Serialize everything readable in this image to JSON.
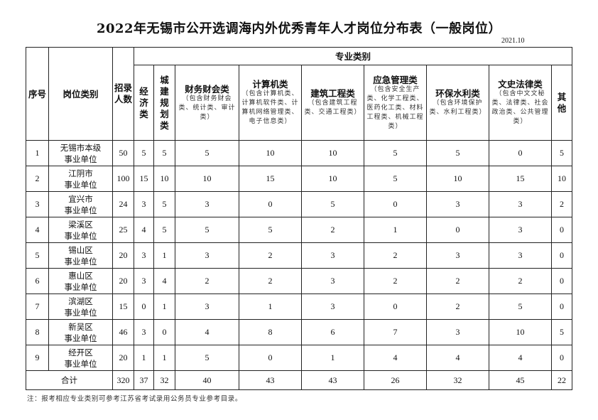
{
  "title": "2022年无锡市公开选调海内外优秀青年人才岗位分布表（一般岗位）",
  "date": "2021.10",
  "headers": {
    "index": "序号",
    "category": "岗位类别",
    "count": "招录人数",
    "major_group": "专业类别",
    "majors": [
      {
        "name": "经济类",
        "sub": ""
      },
      {
        "name": "城建规划类",
        "sub": ""
      },
      {
        "name": "财务财会类",
        "sub": "（包含财务财会类、统计类、审计类）"
      },
      {
        "name": "计算机类",
        "sub": "（包含计算机类、计算机软件类、计算机网络管理类、电子信息类）"
      },
      {
        "name": "建筑工程类",
        "sub": "（包含建筑工程类、交通工程类）"
      },
      {
        "name": "应急管理类",
        "sub": "（包含安全生产类、化学工程类、医药化工类、材料工程类、机械工程类）"
      },
      {
        "name": "环保水利类",
        "sub": "（包含环境保护类、水利工程类）"
      },
      {
        "name": "文史法律类",
        "sub": "（包含中文文秘类、法律类、社会政治类、公共管理类）"
      },
      {
        "name": "其他",
        "sub": ""
      }
    ]
  },
  "rows": [
    {
      "index": "1",
      "unit_a": "无锡市本级",
      "unit_b": "事业单位",
      "values": [
        "50",
        "5",
        "5",
        "5",
        "10",
        "10",
        "5",
        "5",
        "0",
        "5"
      ]
    },
    {
      "index": "2",
      "unit_a": "江阴市",
      "unit_b": "事业单位",
      "values": [
        "100",
        "15",
        "10",
        "10",
        "15",
        "10",
        "5",
        "10",
        "15",
        "10"
      ]
    },
    {
      "index": "3",
      "unit_a": "宜兴市",
      "unit_b": "事业单位",
      "values": [
        "24",
        "3",
        "5",
        "3",
        "0",
        "5",
        "0",
        "3",
        "3",
        "2"
      ]
    },
    {
      "index": "4",
      "unit_a": "梁溪区",
      "unit_b": "事业单位",
      "values": [
        "25",
        "4",
        "5",
        "5",
        "5",
        "2",
        "1",
        "0",
        "3",
        "0"
      ]
    },
    {
      "index": "5",
      "unit_a": "锡山区",
      "unit_b": "事业单位",
      "values": [
        "20",
        "3",
        "1",
        "3",
        "2",
        "3",
        "2",
        "3",
        "3",
        "0"
      ]
    },
    {
      "index": "6",
      "unit_a": "惠山区",
      "unit_b": "事业单位",
      "values": [
        "20",
        "3",
        "4",
        "2",
        "2",
        "3",
        "2",
        "2",
        "2",
        "0"
      ]
    },
    {
      "index": "7",
      "unit_a": "滨湖区",
      "unit_b": "事业单位",
      "values": [
        "15",
        "0",
        "1",
        "3",
        "1",
        "3",
        "0",
        "2",
        "5",
        "0"
      ]
    },
    {
      "index": "8",
      "unit_a": "新吴区",
      "unit_b": "事业单位",
      "values": [
        "46",
        "3",
        "0",
        "4",
        "8",
        "6",
        "7",
        "3",
        "10",
        "5"
      ]
    },
    {
      "index": "9",
      "unit_a": "经开区",
      "unit_b": "事业单位",
      "values": [
        "20",
        "1",
        "1",
        "5",
        "0",
        "1",
        "4",
        "4",
        "4",
        "0"
      ]
    }
  ],
  "total": {
    "label": "合计",
    "values": [
      "320",
      "37",
      "32",
      "40",
      "43",
      "43",
      "26",
      "32",
      "45",
      "22"
    ]
  },
  "note": "注：报考相应专业类别可参考江苏省考试录用公务员专业参考目录。"
}
